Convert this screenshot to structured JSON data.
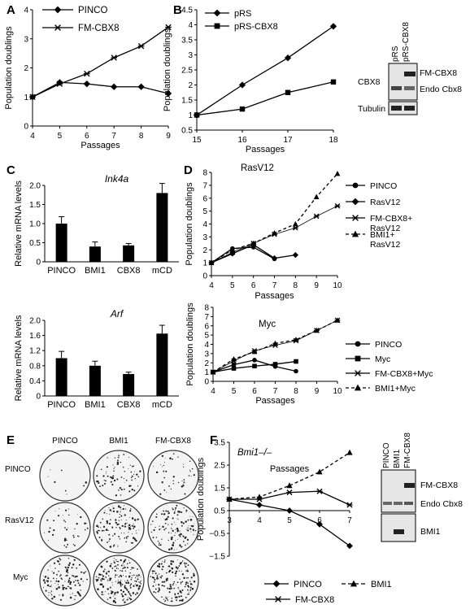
{
  "panel_labels": {
    "a": "A",
    "b": "B",
    "c": "C",
    "d": "D",
    "e": "E",
    "f": "F"
  },
  "chart_data": [
    {
      "panel": "A",
      "type": "line",
      "xlabel": "Passages",
      "ylabel": "Population doublings",
      "xlim": [
        4,
        9
      ],
      "ylim": [
        0,
        4
      ],
      "xticks": [
        "4",
        "5",
        "6",
        "7",
        "8",
        "9"
      ],
      "yticks": [
        "0",
        "1",
        "2",
        "3",
        "4"
      ],
      "legend": "top-left",
      "series": [
        {
          "name": "PINCO",
          "marker": "diamond",
          "x": [
            4,
            5,
            6,
            7,
            8,
            9
          ],
          "y": [
            1.0,
            1.5,
            1.45,
            1.35,
            1.35,
            1.12
          ]
        },
        {
          "name": "FM-CBX8",
          "marker": "star",
          "x": [
            4,
            5,
            6,
            7,
            8,
            9
          ],
          "y": [
            1.0,
            1.45,
            1.8,
            2.35,
            2.75,
            3.4
          ]
        }
      ]
    },
    {
      "panel": "B",
      "type": "line",
      "xlabel": "Passages",
      "ylabel": "Population doublings",
      "xlim": [
        15,
        18
      ],
      "ylim": [
        0.5,
        4.5
      ],
      "xticks": [
        "15",
        "16",
        "17",
        "18"
      ],
      "yticks": [
        "0.5",
        "1",
        "1.5",
        "2",
        "2.5",
        "3",
        "3.5",
        "4",
        "4.5"
      ],
      "legend": "top-left",
      "series": [
        {
          "name": "pRS",
          "marker": "diamond",
          "x": [
            15,
            16,
            17,
            18
          ],
          "y": [
            1.0,
            2.0,
            2.9,
            3.95
          ]
        },
        {
          "name": "pRS-CBX8",
          "marker": "square",
          "x": [
            15,
            16,
            17,
            18
          ],
          "y": [
            1.0,
            1.2,
            1.75,
            2.1
          ]
        }
      ]
    },
    {
      "panel": "C-top",
      "type": "bar",
      "title": "Ink4a",
      "ylabel": "Relative mRNA levels",
      "ylim": [
        0,
        2.0
      ],
      "yticks": [
        "0",
        "0.5",
        "1.0",
        "1.5",
        "2.0"
      ],
      "categories": [
        "PINCO",
        "BMI1",
        "CBX8",
        "mCD"
      ],
      "values": [
        1.0,
        0.4,
        0.43,
        1.8
      ],
      "errors": [
        0.18,
        0.12,
        0.05,
        0.25
      ]
    },
    {
      "panel": "C-bottom",
      "type": "bar",
      "title": "Arf",
      "ylabel": "Relative mRNA levels",
      "ylim": [
        0,
        2.0
      ],
      "yticks": [
        "0",
        "0.4",
        "0.8",
        "1.2",
        "1.6",
        "2.0"
      ],
      "categories": [
        "PINCO",
        "BMI1",
        "CBX8",
        "mCD"
      ],
      "values": [
        1.0,
        0.8,
        0.58,
        1.65
      ],
      "errors": [
        0.18,
        0.12,
        0.05,
        0.22
      ]
    },
    {
      "panel": "D-top",
      "type": "line",
      "title": "RasV12",
      "xlabel": "Passages",
      "ylabel": "Population doublings",
      "xlim": [
        4,
        10
      ],
      "ylim": [
        0,
        8
      ],
      "xticks": [
        "4",
        "5",
        "6",
        "7",
        "8",
        "9",
        "10"
      ],
      "yticks": [
        "0",
        "1",
        "2",
        "3",
        "4",
        "5",
        "6",
        "7",
        "8"
      ],
      "legend": "right",
      "series": [
        {
          "name": "PINCO",
          "marker": "circle",
          "x": [
            4,
            5,
            6,
            7
          ],
          "y": [
            1.0,
            2.1,
            2.2,
            1.3
          ]
        },
        {
          "name": "RasV12",
          "marker": "diamond",
          "x": [
            4,
            5,
            6,
            7,
            8
          ],
          "y": [
            1.0,
            1.7,
            2.4,
            1.35,
            1.6
          ]
        },
        {
          "name": "FM-CBX8+ RasV12",
          "marker": "star",
          "x": [
            4,
            5,
            6,
            7,
            8,
            9,
            10
          ],
          "y": [
            1.0,
            1.8,
            2.5,
            3.2,
            3.7,
            4.6,
            5.4
          ]
        },
        {
          "name": "BMI1+ RasV12",
          "marker": "triangle",
          "x": [
            4,
            5,
            6,
            7,
            8,
            9,
            10
          ],
          "y": [
            1.0,
            2.0,
            2.5,
            3.3,
            4.0,
            6.1,
            7.9
          ]
        }
      ]
    },
    {
      "panel": "D-bottom",
      "type": "line",
      "title": "Myc",
      "xlabel": "Passages",
      "ylabel": "Population doublings",
      "xlim": [
        4,
        10
      ],
      "ylim": [
        0,
        8
      ],
      "xticks": [
        "4",
        "5",
        "6",
        "7",
        "8",
        "9",
        "10"
      ],
      "yticks": [
        "0",
        "1",
        "2",
        "3",
        "4",
        "5",
        "6",
        "7",
        "8"
      ],
      "legend": "right",
      "series": [
        {
          "name": "PINCO",
          "marker": "circle",
          "x": [
            4,
            5,
            6,
            7,
            8
          ],
          "y": [
            1.0,
            1.8,
            2.3,
            1.6,
            1.1
          ]
        },
        {
          "name": "Myc",
          "marker": "square",
          "x": [
            4,
            5,
            6,
            7,
            8
          ],
          "y": [
            1.0,
            1.4,
            1.65,
            1.85,
            2.15
          ]
        },
        {
          "name": "FM-CBX8+Myc",
          "marker": "star",
          "x": [
            4,
            5,
            6,
            7,
            8,
            9,
            10
          ],
          "y": [
            1.0,
            2.2,
            3.3,
            3.9,
            4.4,
            5.5,
            6.6
          ]
        },
        {
          "name": "BMI1+Myc",
          "marker": "triangle",
          "x": [
            4,
            5,
            6,
            7,
            8,
            9,
            10
          ],
          "y": [
            1.0,
            2.4,
            3.2,
            4.1,
            4.5,
            5.5,
            6.6
          ]
        }
      ]
    },
    {
      "panel": "F",
      "type": "line",
      "title": "Bmi1–/–",
      "xlabel": "Passages",
      "ylabel": "Population doublings",
      "xlim": [
        3,
        7
      ],
      "ylim": [
        -1.5,
        3.5
      ],
      "xticks": [
        "3",
        "4",
        "5",
        "6",
        "7"
      ],
      "yticks": [
        "3.5",
        "2.5",
        "1.5",
        "0.5",
        "−0.5",
        "−1.5"
      ],
      "yticksv": [
        3.5,
        2.5,
        1.5,
        0.5,
        -0.5,
        -1.5
      ],
      "legend": "bottom",
      "series": [
        {
          "name": "PINCO",
          "marker": "diamond",
          "x": [
            3,
            4,
            5,
            6,
            7
          ],
          "y": [
            1.0,
            0.75,
            0.5,
            -0.1,
            -1.05
          ]
        },
        {
          "name": "BMI1",
          "marker": "triangle",
          "dashed": true,
          "x": [
            3,
            4,
            5,
            6,
            7
          ],
          "y": [
            1.0,
            1.1,
            1.6,
            2.2,
            3.05
          ]
        },
        {
          "name": "FM-CBX8",
          "marker": "star",
          "x": [
            3,
            4,
            5,
            6,
            7
          ],
          "y": [
            1.0,
            1.0,
            1.3,
            1.35,
            0.75
          ]
        }
      ]
    }
  ],
  "blot_b": {
    "lanes": [
      "pRS",
      "pRS-CBX8"
    ],
    "row_label_1": "CBX8",
    "band_1a": "FM-CBX8",
    "band_1b": "Endo Cbx8",
    "row_label_2": "Tubulin"
  },
  "plates_e": {
    "cols": [
      "PINCO",
      "BMI1",
      "FM-CBX8"
    ],
    "rows": [
      "PINCO",
      "RasV12",
      "Myc"
    ]
  },
  "blot_f": {
    "lanes": [
      "PINCO",
      "BMI1",
      "FM-CBX8"
    ],
    "band_1a": "FM-CBX8",
    "band_1b": "Endo Cbx8",
    "band_2": "BMI1"
  }
}
